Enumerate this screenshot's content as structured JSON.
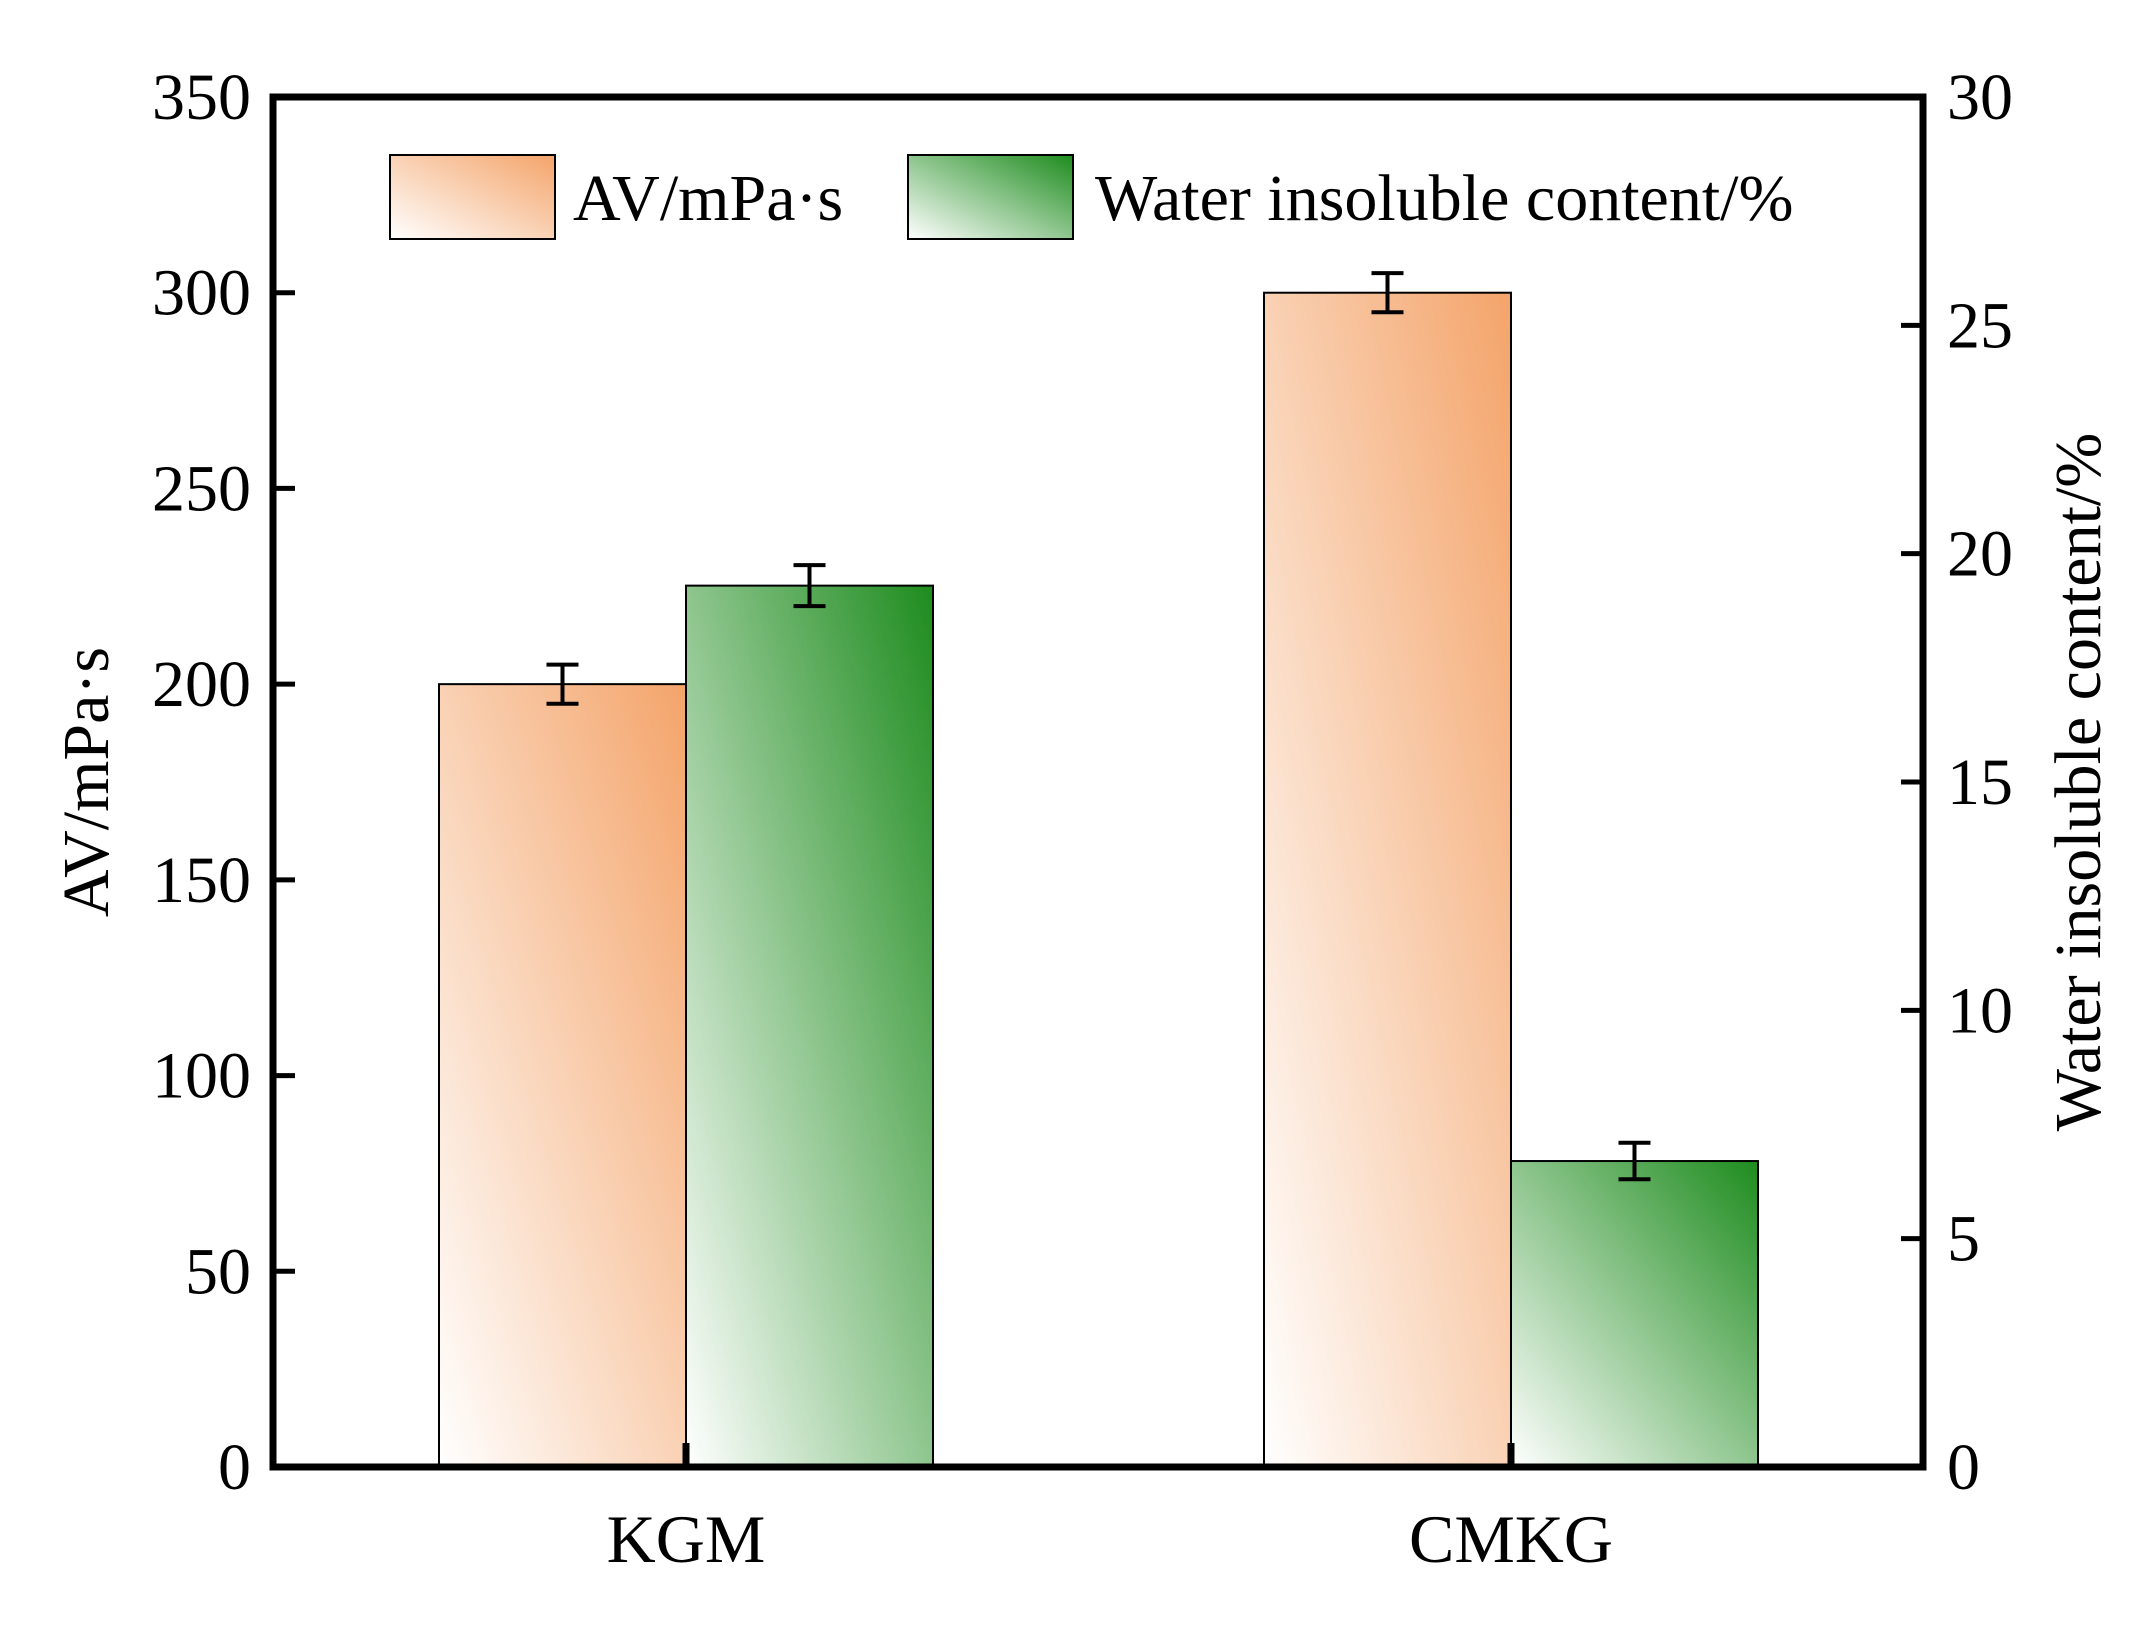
{
  "chart_data": {
    "type": "bar",
    "title": "",
    "categories": [
      "KGM",
      "CMKG"
    ],
    "xlabel": "",
    "ylabel_left": "AV/mPa·s",
    "ylabel_right": "Water insoluble content/%",
    "ylim_left": [
      0,
      350
    ],
    "ylim_right": [
      0,
      30
    ],
    "yticks_left": [
      "0",
      "50",
      "100",
      "150",
      "200",
      "250",
      "300",
      "350"
    ],
    "yticks_right": [
      "0",
      "5",
      "10",
      "15",
      "20",
      "25",
      "30"
    ],
    "legend_position": "top",
    "series": [
      {
        "name": "AV/mPa·s",
        "axis": "left",
        "values": [
          200,
          300
        ],
        "errors": [
          5,
          5
        ],
        "color": "#F4A46A"
      },
      {
        "name": "Water insoluble content/%",
        "axis": "right",
        "values": [
          19.3,
          6.7
        ],
        "errors": [
          0.45,
          0.4
        ],
        "color": "#1E8C1E"
      }
    ]
  }
}
